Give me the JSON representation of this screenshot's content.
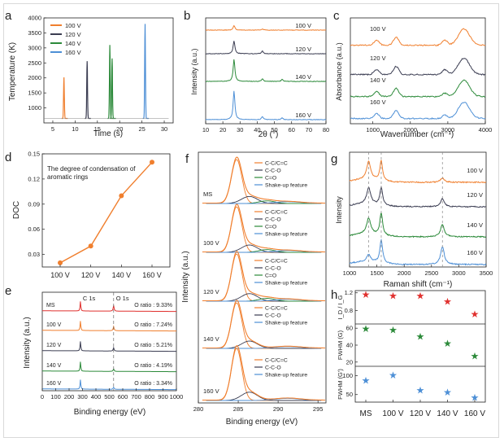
{
  "colors": {
    "v100": "#f07f2e",
    "v120": "#3b3d52",
    "v140": "#2c8a3a",
    "v160": "#4d8fd6",
    "ms": "#e0302e",
    "axis": "#222222"
  },
  "chart_data": [
    {
      "id": "a",
      "panel_letter": "a",
      "type": "line",
      "xlabel": "Time (s)",
      "ylabel": "Temperature (K)",
      "xlim": [
        3,
        32
      ],
      "ylim": [
        500,
        4000
      ],
      "xticks": [
        5,
        10,
        15,
        20,
        25,
        30
      ],
      "yticks": [
        1000,
        1500,
        2000,
        2500,
        3000,
        3500,
        4000
      ],
      "legend": [
        "100 V",
        "120 V",
        "140 V",
        "160 V"
      ],
      "series": [
        {
          "name": "100 V",
          "pulses": [
            {
              "t": 7.5,
              "peak": 2020
            }
          ]
        },
        {
          "name": "120 V",
          "pulses": [
            {
              "t": 12.7,
              "peak": 2560
            }
          ]
        },
        {
          "name": "140 V",
          "pulses": [
            {
              "t": 17.8,
              "peak": 3100
            },
            {
              "t": 18.3,
              "peak": 2650
            }
          ]
        },
        {
          "name": "160 V",
          "pulses": [
            {
              "t": 25.7,
              "peak": 3800
            }
          ]
        }
      ],
      "baseline": 650
    },
    {
      "id": "b",
      "panel_letter": "b",
      "type": "line",
      "xlabel": "2θ (°)",
      "ylabel": "Intensity (a.u.)",
      "xlim": [
        10,
        80
      ],
      "xticks": [
        10,
        20,
        30,
        40,
        50,
        60,
        70,
        80
      ],
      "series": [
        {
          "name": "100 V",
          "peaks": [
            [
              26.5,
              0.35
            ],
            [
              43,
              0.1
            ]
          ]
        },
        {
          "name": "120 V",
          "peaks": [
            [
              26.5,
              1.0
            ],
            [
              43,
              0.2
            ]
          ]
        },
        {
          "name": "140 V",
          "peaks": [
            [
              26.5,
              1.7
            ],
            [
              43,
              0.2
            ],
            [
              54.5,
              0.15
            ]
          ]
        },
        {
          "name": "160 V",
          "peaks": [
            [
              26.5,
              2.2
            ],
            [
              43,
              0.25
            ],
            [
              54.5,
              0.15
            ]
          ]
        }
      ]
    },
    {
      "id": "c",
      "panel_letter": "c",
      "type": "line",
      "xlabel": "Wavenumber (cm⁻¹)",
      "ylabel": "Absorbance (a.u.)",
      "xlim": [
        400,
        4000
      ],
      "xticks": [
        1000,
        2000,
        3000,
        4000
      ],
      "series": [
        {
          "name": "100 V",
          "bands": [
            [
              1100,
              0.3
            ],
            [
              1620,
              0.5
            ],
            [
              2920,
              0.3
            ],
            [
              3430,
              1.0
            ]
          ]
        },
        {
          "name": "120 V",
          "bands": [
            [
              1100,
              0.3
            ],
            [
              1620,
              0.5
            ],
            [
              2920,
              0.3
            ],
            [
              3430,
              1.0
            ]
          ]
        },
        {
          "name": "140 V",
          "bands": [
            [
              1100,
              0.3
            ],
            [
              1620,
              0.5
            ],
            [
              2920,
              0.2
            ],
            [
              3430,
              1.0
            ]
          ]
        },
        {
          "name": "160 V",
          "bands": [
            [
              1100,
              0.3
            ],
            [
              1620,
              0.5
            ],
            [
              2920,
              0.2
            ],
            [
              3430,
              1.0
            ]
          ]
        }
      ]
    },
    {
      "id": "d",
      "panel_letter": "d",
      "type": "line",
      "xlabel": "",
      "ylabel": "DOC",
      "annotation": "The degree of condensation of aromatic rings",
      "categories": [
        "100 V",
        "120 V",
        "140 V",
        "160 V"
      ],
      "values": [
        0.02,
        0.04,
        0.1,
        0.14
      ],
      "ylim": [
        0.015,
        0.15
      ],
      "yticks": [
        0.03,
        0.06,
        0.09,
        0.12,
        0.15
      ]
    },
    {
      "id": "e",
      "panel_letter": "e",
      "type": "line",
      "xlabel": "Binding energy (eV)",
      "ylabel": "Intensity (a.u.)",
      "xlim": [
        0,
        1000
      ],
      "xticks": [
        0,
        100,
        200,
        300,
        400,
        500,
        600,
        700,
        800,
        900,
        1000
      ],
      "peak_labels": [
        "C 1s",
        "O 1s"
      ],
      "series": [
        {
          "name": "MS",
          "ratio": "O ratio : 9.33%"
        },
        {
          "name": "100 V",
          "ratio": "O ratio : 7.24%"
        },
        {
          "name": "120 V",
          "ratio": "O ratio : 5.21%"
        },
        {
          "name": "140 V",
          "ratio": "O ratio : 4.19%"
        },
        {
          "name": "160 V",
          "ratio": "O ratio : 3.34%"
        }
      ]
    },
    {
      "id": "f",
      "panel_letter": "f",
      "type": "line",
      "xlabel": "Binding energy (eV)",
      "ylabel": "Intensity (a.u.)",
      "xlim": [
        280,
        296
      ],
      "xticks": [
        280,
        285,
        290,
        295
      ],
      "components": [
        "C-C/C=C",
        "C-C-O",
        "C=O",
        "Shake-up feature"
      ],
      "series": [
        {
          "name": "MS",
          "has_co": true
        },
        {
          "name": "100 V",
          "has_co": true
        },
        {
          "name": "120 V",
          "has_co": true
        },
        {
          "name": "140 V",
          "has_co": false
        },
        {
          "name": "160 V",
          "has_co": false
        }
      ]
    },
    {
      "id": "g",
      "panel_letter": "g",
      "type": "line",
      "xlabel": "Raman shift (cm⁻¹)",
      "ylabel": "Intensity",
      "xlim": [
        1000,
        3500
      ],
      "xticks": [
        1000,
        1500,
        2000,
        2500,
        3000,
        3500
      ],
      "dashed_lines": [
        1350,
        1580,
        2700
      ],
      "series": [
        {
          "name": "100 V",
          "D": 1.0,
          "G": 1.1,
          "G2": 0.25
        },
        {
          "name": "120 V",
          "D": 0.9,
          "G": 1.0,
          "G2": 0.45
        },
        {
          "name": "140 V",
          "D": 0.9,
          "G": 1.25,
          "G2": 0.7
        },
        {
          "name": "160 V",
          "D": 0.4,
          "G": 1.3,
          "G2": 1.0
        }
      ]
    },
    {
      "id": "h",
      "panel_letter": "h",
      "type": "scatter",
      "categories": [
        "MS",
        "100 V",
        "120 V",
        "140 V",
        "160 V"
      ],
      "rows": [
        {
          "ylabel": "I_D / I_G",
          "values": [
            1.16,
            1.13,
            1.13,
            1.0,
            0.72
          ],
          "ylim": [
            0.5,
            1.25
          ],
          "yticks": [
            0.8,
            1.2
          ],
          "color_key": "ms"
        },
        {
          "ylabel": "FWHM (G)",
          "values": [
            59,
            58,
            50,
            42,
            27
          ],
          "ylim": [
            15,
            65
          ],
          "yticks": [
            20,
            40,
            60
          ],
          "color_key": "v140"
        },
        {
          "ylabel": "FWHM (G')",
          "values": [
            87,
            101,
            61,
            56,
            42
          ],
          "ylim": [
            30,
            125
          ],
          "yticks": [
            50,
            100
          ],
          "color_key": "v160"
        }
      ]
    }
  ]
}
